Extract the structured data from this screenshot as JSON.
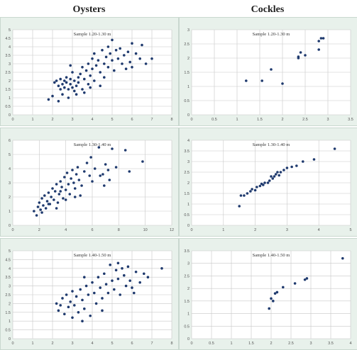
{
  "column_titles": {
    "left": "Oysters",
    "right": "Cockles"
  },
  "colors": {
    "marker": "#1f3a6e",
    "panel_bg": "#e8f1eb",
    "grid": "#c8c8c8",
    "chart_bg": "#ffffff"
  },
  "chart_data": [
    {
      "id": "oysters-a",
      "type": "scatter",
      "title": "Sample 1.20-1.30 m",
      "xlim": [
        0,
        8
      ],
      "ylim": [
        0,
        5
      ],
      "xticks": [
        0,
        1,
        2,
        3,
        4,
        5,
        6,
        7,
        8
      ],
      "yticks": [
        0,
        0.5,
        1,
        1.5,
        2,
        2.5,
        3,
        3.5,
        4,
        4.5,
        5
      ],
      "xticklabels": [
        "0",
        "1",
        "2",
        "3",
        "4",
        "5",
        "6",
        "7",
        "8"
      ],
      "yticklabels": [
        "0",
        "0.5",
        "1",
        "1.5",
        "2",
        "2.5",
        "3",
        "3.5",
        "4",
        "4.5",
        "5"
      ],
      "grid": true,
      "points": [
        [
          2.1,
          1.9
        ],
        [
          2.2,
          2
        ],
        [
          2.3,
          1.7
        ],
        [
          2.4,
          1.5
        ],
        [
          2.4,
          2.1
        ],
        [
          2.5,
          1.8
        ],
        [
          2.5,
          1.2
        ],
        [
          2.6,
          2
        ],
        [
          2.6,
          1.6
        ],
        [
          2.7,
          1.9
        ],
        [
          2.7,
          2.2
        ],
        [
          2.8,
          1.5
        ],
        [
          2.8,
          1
        ],
        [
          2.9,
          2.1
        ],
        [
          2.9,
          1.8
        ],
        [
          3,
          1.6
        ],
        [
          3,
          2.5
        ],
        [
          3.1,
          1.4
        ],
        [
          3.1,
          2
        ],
        [
          3.2,
          1.2
        ],
        [
          3.2,
          1.7
        ],
        [
          3.3,
          2.2
        ],
        [
          3.3,
          1.9
        ],
        [
          3.4,
          2.4
        ],
        [
          3.5,
          1.5
        ],
        [
          3.5,
          2.8
        ],
        [
          3.6,
          2.1
        ],
        [
          3.7,
          2.6
        ],
        [
          3.8,
          1.8
        ],
        [
          3.8,
          3
        ],
        [
          3.9,
          2.3
        ],
        [
          4,
          2.7
        ],
        [
          4,
          3.3
        ],
        [
          4.1,
          2
        ],
        [
          4.1,
          3.6
        ],
        [
          4.2,
          2.9
        ],
        [
          4.3,
          3.2
        ],
        [
          4.4,
          2.5
        ],
        [
          4.5,
          3.8
        ],
        [
          4.6,
          3
        ],
        [
          4.7,
          3.4
        ],
        [
          4.8,
          4
        ],
        [
          4.8,
          2.8
        ],
        [
          4.9,
          3.6
        ],
        [
          5,
          3.2
        ],
        [
          5,
          4.4
        ],
        [
          5.1,
          2.6
        ],
        [
          5.2,
          3.8
        ],
        [
          5.3,
          3.3
        ],
        [
          5.4,
          3.9
        ],
        [
          5.5,
          3
        ],
        [
          5.6,
          3.5
        ],
        [
          5.7,
          2.7
        ],
        [
          5.8,
          3.7
        ],
        [
          5.9,
          3.1
        ],
        [
          6,
          4.2
        ],
        [
          6,
          2.8
        ],
        [
          6.2,
          3.6
        ],
        [
          6.4,
          3.3
        ],
        [
          6.5,
          4.1
        ],
        [
          6.7,
          3
        ],
        [
          7,
          3.3
        ],
        [
          1.8,
          0.9
        ],
        [
          2,
          1.1
        ],
        [
          2.3,
          0.8
        ],
        [
          3.6,
          1.3
        ],
        [
          4.4,
          1.7
        ],
        [
          4.6,
          2.2
        ],
        [
          3.9,
          1.6
        ],
        [
          2.9,
          2.9
        ]
      ]
    },
    {
      "id": "cockles-a",
      "type": "scatter",
      "title": "Sample 1.20-1.30 m",
      "xlim": [
        0,
        3.5
      ],
      "ylim": [
        0,
        3
      ],
      "xticks": [
        0,
        0.5,
        1,
        1.5,
        2,
        2.5,
        3,
        3.5
      ],
      "yticks": [
        0,
        0.5,
        1,
        1.5,
        2,
        2.5,
        3
      ],
      "xticklabels": [
        "0",
        "0.5",
        "1",
        "1.5",
        "2",
        "2.5",
        "3",
        "3.5"
      ],
      "yticklabels": [
        "0",
        "0.5",
        "1",
        "1.5",
        "2",
        "2.5",
        "3"
      ],
      "grid": true,
      "points": [
        [
          1.2,
          1.2
        ],
        [
          1.55,
          1.2
        ],
        [
          1.75,
          1.6
        ],
        [
          2,
          1.1
        ],
        [
          2.35,
          2.05
        ],
        [
          2.4,
          2.2
        ],
        [
          2.5,
          2.1
        ],
        [
          2.8,
          2.6
        ],
        [
          2.8,
          2.3
        ],
        [
          2.85,
          2.7
        ],
        [
          2.9,
          2.7
        ],
        [
          2.35,
          2.0
        ]
      ]
    },
    {
      "id": "oysters-b",
      "type": "scatter",
      "title": "Sample 1.30-1.40 m",
      "xlim": [
        0,
        12
      ],
      "ylim": [
        0,
        6
      ],
      "xticks": [
        0,
        2,
        4,
        6,
        8,
        10,
        12
      ],
      "yticks": [
        0,
        1,
        2,
        3,
        4,
        5,
        6
      ],
      "xticklabels": [
        "0",
        "2",
        "4",
        "6",
        "8",
        "10",
        "12"
      ],
      "yticklabels": [
        "0",
        "1",
        "2",
        "3",
        "4",
        "5",
        "6"
      ],
      "grid": true,
      "points": [
        [
          1.6,
          1
        ],
        [
          1.8,
          0.7
        ],
        [
          1.9,
          1.3
        ],
        [
          2,
          1.6
        ],
        [
          2.1,
          1.1
        ],
        [
          2.2,
          1.9
        ],
        [
          2.3,
          1.4
        ],
        [
          2.4,
          2.1
        ],
        [
          2.5,
          1.2
        ],
        [
          2.6,
          1.7
        ],
        [
          2.7,
          2.3
        ],
        [
          2.8,
          1.5
        ],
        [
          2.9,
          2
        ],
        [
          3,
          2.6
        ],
        [
          3.1,
          1.8
        ],
        [
          3.2,
          2.4
        ],
        [
          3.3,
          2.9
        ],
        [
          3.4,
          1.6
        ],
        [
          3.5,
          2.2
        ],
        [
          3.6,
          3.1
        ],
        [
          3.7,
          2.7
        ],
        [
          3.8,
          1.9
        ],
        [
          3.9,
          3.4
        ],
        [
          4,
          2.5
        ],
        [
          4.1,
          3.7
        ],
        [
          4.2,
          2.9
        ],
        [
          4.3,
          2.2
        ],
        [
          4.4,
          3.3
        ],
        [
          4.5,
          3.9
        ],
        [
          4.6,
          3
        ],
        [
          4.7,
          2.6
        ],
        [
          4.8,
          3.6
        ],
        [
          4.9,
          4.1
        ],
        [
          5,
          3.2
        ],
        [
          5.2,
          2.8
        ],
        [
          5.4,
          3.8
        ],
        [
          5.6,
          4.4
        ],
        [
          5.8,
          3.5
        ],
        [
          6,
          3.1
        ],
        [
          6.2,
          4
        ],
        [
          6.5,
          5.5
        ],
        [
          6.8,
          3.6
        ],
        [
          7,
          4.3
        ],
        [
          7.2,
          3.9
        ],
        [
          7.5,
          5.4
        ],
        [
          7.8,
          4.1
        ],
        [
          8.5,
          5.3
        ],
        [
          8.8,
          3.8
        ],
        [
          9.8,
          4.5
        ],
        [
          6.9,
          2.8
        ],
        [
          5.1,
          2.1
        ],
        [
          3.3,
          1.2
        ],
        [
          2.2,
          0.9
        ],
        [
          4,
          1.8
        ],
        [
          7.3,
          3.2
        ],
        [
          5.9,
          4.8
        ],
        [
          6.6,
          3.5
        ],
        [
          4.7,
          2.0
        ],
        [
          3.6,
          2.4
        ],
        [
          2.7,
          1.5
        ]
      ]
    },
    {
      "id": "cockles-b",
      "type": "scatter",
      "title": "Sample 1.30-1.40 m",
      "xlim": [
        0,
        5
      ],
      "ylim": [
        0,
        4
      ],
      "xticks": [
        0,
        1,
        2,
        3,
        4,
        5
      ],
      "yticks": [
        0,
        0.5,
        1,
        1.5,
        2,
        2.5,
        3,
        3.5,
        4
      ],
      "xticklabels": [
        "0",
        "1",
        "2",
        "3",
        "4",
        "5"
      ],
      "yticklabels": [
        "0",
        "0.5",
        "1",
        "1.5",
        "2",
        "2.5",
        "3",
        "3.5",
        "4"
      ],
      "grid": true,
      "points": [
        [
          1.5,
          0.9
        ],
        [
          1.55,
          1.4
        ],
        [
          1.65,
          1.4
        ],
        [
          1.75,
          1.5
        ],
        [
          1.85,
          1.6
        ],
        [
          1.9,
          1.7
        ],
        [
          2,
          1.65
        ],
        [
          2.05,
          1.8
        ],
        [
          2.15,
          1.85
        ],
        [
          2.25,
          1.9
        ],
        [
          2.3,
          2
        ],
        [
          2.4,
          2
        ],
        [
          2.45,
          2.1
        ],
        [
          2.55,
          2.2
        ],
        [
          2.6,
          2.3
        ],
        [
          2.65,
          2.4
        ],
        [
          2.7,
          2.5
        ],
        [
          2.8,
          2.5
        ],
        [
          2.9,
          2.6
        ],
        [
          3,
          2.7
        ],
        [
          3.15,
          2.75
        ],
        [
          3.3,
          2.8
        ],
        [
          3.5,
          3
        ],
        [
          3.85,
          3.1
        ],
        [
          4.5,
          3.6
        ],
        [
          2.5,
          2.3
        ],
        [
          2.2,
          1.95
        ],
        [
          2.75,
          2.35
        ]
      ]
    },
    {
      "id": "oysters-c",
      "type": "scatter",
      "title": "Sample 1.40-1.50 m",
      "xlim": [
        0,
        8
      ],
      "ylim": [
        0,
        5
      ],
      "xticks": [
        0,
        1,
        2,
        3,
        4,
        5,
        6,
        7,
        8
      ],
      "yticks": [
        0,
        0.5,
        1,
        1.5,
        2,
        2.5,
        3,
        3.5,
        4,
        4.5,
        5
      ],
      "xticklabels": [
        "0",
        "1",
        "2",
        "3",
        "4",
        "5",
        "6",
        "7",
        "8"
      ],
      "yticklabels": [
        "0",
        "0.5",
        "1",
        "1.5",
        "2",
        "2.5",
        "3",
        "3.5",
        "4",
        "4.5",
        "5"
      ],
      "grid": true,
      "points": [
        [
          2.2,
          2
        ],
        [
          2.3,
          1.6
        ],
        [
          2.5,
          2.3
        ],
        [
          2.6,
          1.4
        ],
        [
          2.7,
          2.5
        ],
        [
          2.8,
          1.8
        ],
        [
          2.9,
          2.1
        ],
        [
          3,
          1.2
        ],
        [
          3,
          2.7
        ],
        [
          3.1,
          1.9
        ],
        [
          3.2,
          2.4
        ],
        [
          3.3,
          1.5
        ],
        [
          3.4,
          2.8
        ],
        [
          3.5,
          2.2
        ],
        [
          3.6,
          1.7
        ],
        [
          3.7,
          3
        ],
        [
          3.8,
          2.5
        ],
        [
          3.9,
          1.3
        ],
        [
          4,
          3.2
        ],
        [
          4.1,
          2.6
        ],
        [
          4.2,
          2
        ],
        [
          4.3,
          3.5
        ],
        [
          4.4,
          2.9
        ],
        [
          4.5,
          2.3
        ],
        [
          4.6,
          3.7
        ],
        [
          4.7,
          3.1
        ],
        [
          4.8,
          2.6
        ],
        [
          4.9,
          4.2
        ],
        [
          5,
          3.3
        ],
        [
          5.1,
          2.8
        ],
        [
          5.2,
          3.9
        ],
        [
          5.3,
          3.4
        ],
        [
          5.4,
          2.5
        ],
        [
          5.5,
          4
        ],
        [
          5.6,
          3.6
        ],
        [
          5.7,
          3
        ],
        [
          5.8,
          4.1
        ],
        [
          5.9,
          3.3
        ],
        [
          6,
          2.9
        ],
        [
          6.2,
          3.8
        ],
        [
          6.4,
          3.2
        ],
        [
          6.6,
          3.7
        ],
        [
          6.8,
          3.5
        ],
        [
          7.5,
          4
        ],
        [
          3.5,
          1
        ],
        [
          2.4,
          1.9
        ],
        [
          4.5,
          1.6
        ],
        [
          6.1,
          2.6
        ],
        [
          5.3,
          4.3
        ],
        [
          3.6,
          3.5
        ]
      ]
    },
    {
      "id": "cockles-c",
      "type": "scatter",
      "title": "Sample 1.40-1.50 m",
      "xlim": [
        0,
        4
      ],
      "ylim": [
        0,
        3.5
      ],
      "xticks": [
        0,
        0.5,
        1,
        1.5,
        2,
        2.5,
        3,
        3.5,
        4
      ],
      "yticks": [
        0,
        0.5,
        1,
        1.5,
        2,
        2.5,
        3,
        3.5
      ],
      "xticklabels": [
        "0",
        "0.5",
        "1",
        "1.5",
        "2",
        "2.5",
        "3",
        "3.5",
        "4"
      ],
      "yticklabels": [
        "0",
        "0.5",
        "1",
        "1.5",
        "2",
        "2.5",
        "3",
        "3.5"
      ],
      "grid": true,
      "points": [
        [
          1.95,
          1.2
        ],
        [
          2,
          1.6
        ],
        [
          2.05,
          1.5
        ],
        [
          2.1,
          1.8
        ],
        [
          2.15,
          1.85
        ],
        [
          2.3,
          2.05
        ],
        [
          2.6,
          2.2
        ],
        [
          2.9,
          2.4
        ],
        [
          2.85,
          2.35
        ],
        [
          3.8,
          3.2
        ]
      ]
    }
  ]
}
